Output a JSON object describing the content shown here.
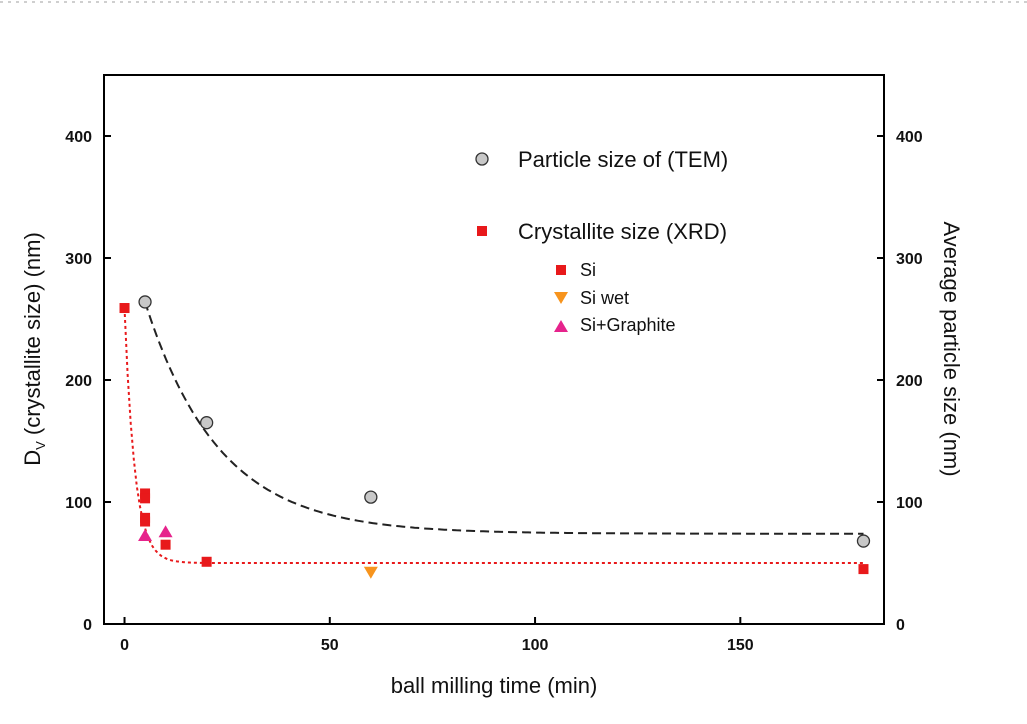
{
  "chart_data": {
    "type": "scatter",
    "xlabel": "ball milling time (min)",
    "ylabel_left_main": "D",
    "ylabel_left_sub": "V",
    "ylabel_left_rest": " (crystallite size) (nm)",
    "ylabel_right": "Average particle size (nm)",
    "xlim": [
      -5,
      185
    ],
    "ylim": [
      0,
      450
    ],
    "xticks": [
      0,
      50,
      100,
      150
    ],
    "yticks": [
      0,
      100,
      200,
      300,
      400
    ],
    "legend": {
      "group_tem": "Particle size of (TEM)",
      "group_xrd": "Crystallite size (XRD)",
      "entries": [
        "Si",
        "Si wet",
        "Si+Graphite"
      ]
    },
    "series": [
      {
        "name": "Particle size of (TEM)",
        "marker": "circle",
        "color": "#c8c8c8",
        "points": [
          [
            5,
            264
          ],
          [
            20,
            165
          ],
          [
            60,
            104
          ],
          [
            180,
            68
          ]
        ]
      },
      {
        "name": "Si",
        "marker": "square",
        "color": "#e8191b",
        "points": [
          [
            0,
            259
          ],
          [
            5,
            107
          ],
          [
            5,
            103
          ],
          [
            5,
            87
          ],
          [
            5,
            84
          ],
          [
            10,
            65
          ],
          [
            20,
            51
          ],
          [
            180,
            45
          ]
        ]
      },
      {
        "name": "Si wet",
        "marker": "triangle-down",
        "color": "#f7941d",
        "points": [
          [
            60,
            42
          ]
        ]
      },
      {
        "name": "Si+Graphite",
        "marker": "triangle-up",
        "color": "#e6238c",
        "points": [
          [
            5,
            73
          ],
          [
            10,
            76
          ]
        ]
      }
    ],
    "fits": [
      {
        "series": "Particle size of (TEM)",
        "style": "dashed",
        "color": "#222222",
        "model": "exp",
        "y_inf": 74,
        "amplitude": 190,
        "tau": 18,
        "x0": 5,
        "x_end": 180
      },
      {
        "series": "Crystallite size (XRD)",
        "style": "dotted",
        "color": "#e8191b",
        "model": "exp",
        "y_inf": 50,
        "amplitude": 209,
        "tau": 2.5,
        "x0": 0,
        "x_end": 180
      }
    ]
  }
}
